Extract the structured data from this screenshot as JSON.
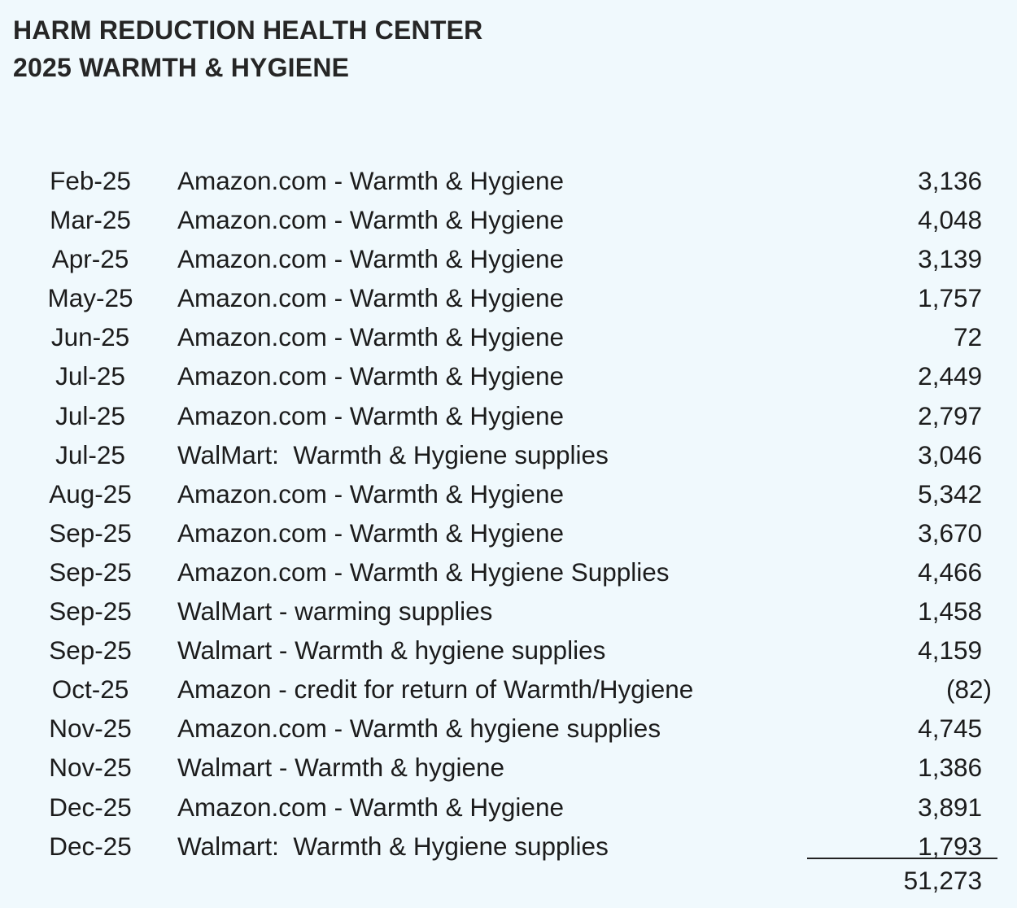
{
  "header": {
    "org_name": "HARM REDUCTION HEALTH CENTER",
    "report_title": "2025 WARMTH & HYGIENE"
  },
  "entries": [
    {
      "date": "Feb-25",
      "description": "Amazon.com - Warmth & Hygiene",
      "amount": "3,136"
    },
    {
      "date": "Mar-25",
      "description": "Amazon.com - Warmth & Hygiene",
      "amount": "4,048"
    },
    {
      "date": "Apr-25",
      "description": "Amazon.com - Warmth & Hygiene",
      "amount": "3,139"
    },
    {
      "date": "May-25",
      "description": "Amazon.com - Warmth & Hygiene",
      "amount": "1,757"
    },
    {
      "date": "Jun-25",
      "description": "Amazon.com - Warmth & Hygiene",
      "amount": "72"
    },
    {
      "date": "Jul-25",
      "description": "Amazon.com - Warmth & Hygiene",
      "amount": "2,449"
    },
    {
      "date": "Jul-25",
      "description": "Amazon.com - Warmth & Hygiene",
      "amount": "2,797"
    },
    {
      "date": "Jul-25",
      "description": "WalMart:  Warmth & Hygiene supplies",
      "amount": "3,046"
    },
    {
      "date": "Aug-25",
      "description": "Amazon.com - Warmth & Hygiene",
      "amount": "5,342"
    },
    {
      "date": "Sep-25",
      "description": "Amazon.com - Warmth & Hygiene",
      "amount": "3,670"
    },
    {
      "date": "Sep-25",
      "description": "Amazon.com - Warmth & Hygiene Supplies",
      "amount": "4,466"
    },
    {
      "date": "Sep-25",
      "description": "WalMart - warming supplies",
      "amount": "1,458"
    },
    {
      "date": "Sep-25",
      "description": "Walmart - Warmth & hygiene supplies",
      "amount": "4,159"
    },
    {
      "date": "Oct-25",
      "description": "Amazon - credit for return of Warmth/Hygiene",
      "amount": "(82)"
    },
    {
      "date": "Nov-25",
      "description": "Amazon.com - Warmth & hygiene supplies",
      "amount": "4,745"
    },
    {
      "date": "Nov-25",
      "description": "Walmart - Warmth & hygiene",
      "amount": "1,386"
    },
    {
      "date": "Dec-25",
      "description": "Amazon.com - Warmth & Hygiene",
      "amount": "3,891"
    },
    {
      "date": "Dec-25",
      "description": "Walmart:  Warmth & Hygiene supplies",
      "amount": "1,793"
    }
  ],
  "total": "51,273"
}
